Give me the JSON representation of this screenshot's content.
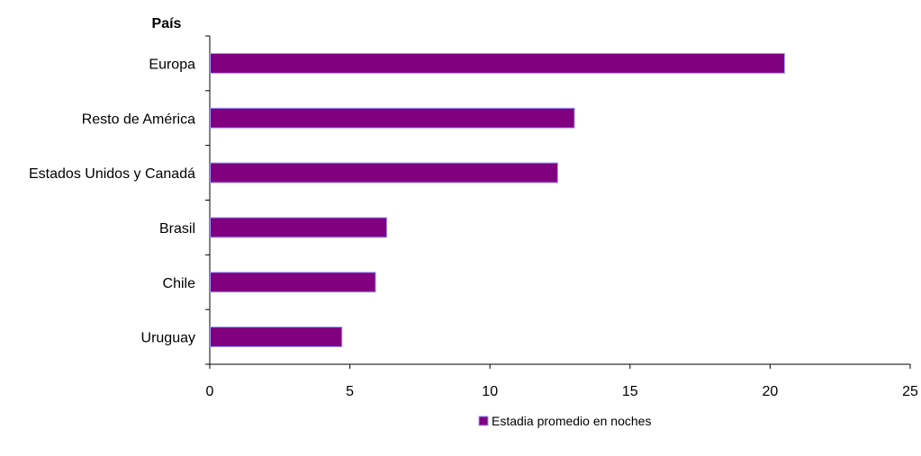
{
  "chart_data": {
    "type": "bar",
    "orientation": "horizontal",
    "ylabel": "País",
    "xlabel": "",
    "categories": [
      "Europa",
      "Resto de América",
      "Estados Unidos y Canadá",
      "Brasil",
      "Chile",
      "Uruguay"
    ],
    "series": [
      {
        "name": "Estadia promedio en noches",
        "values": [
          20.5,
          13.0,
          12.4,
          6.3,
          5.9,
          4.7
        ]
      }
    ],
    "xlim": [
      0,
      25
    ],
    "xticks": [
      0,
      5,
      10,
      15,
      20,
      25
    ],
    "grid": false,
    "legend_position": "bottom",
    "colors": {
      "bar_fill": "#800080",
      "bar_stroke": "#9999ff",
      "axis": "#000000"
    }
  }
}
